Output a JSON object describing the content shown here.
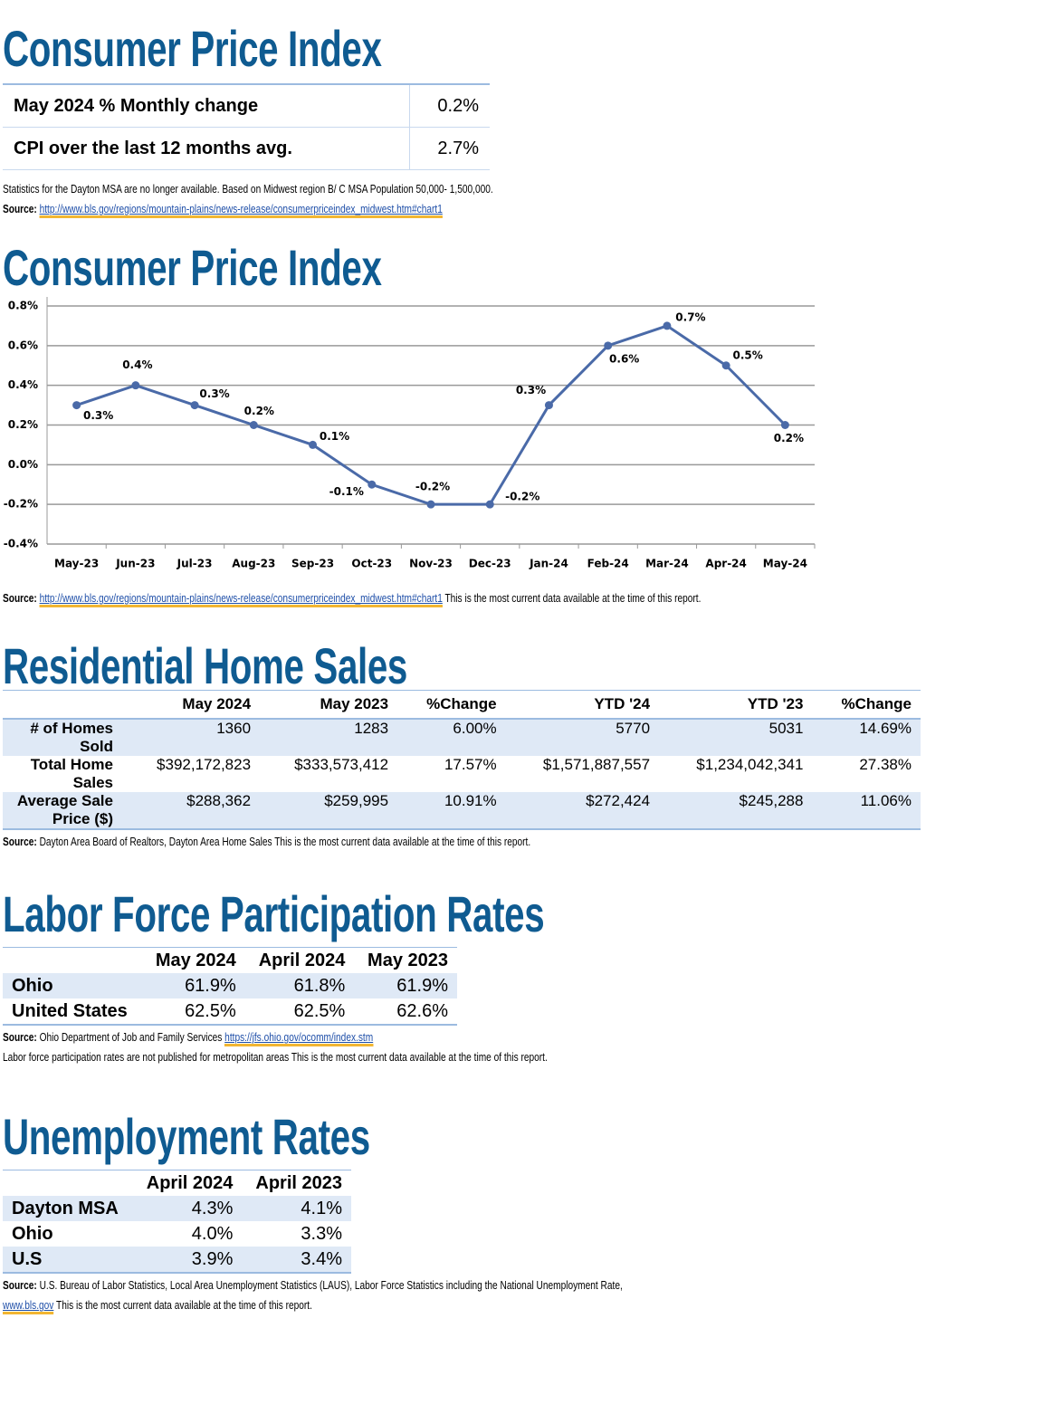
{
  "cpi_summary": {
    "title": "Consumer Price Index",
    "rows": [
      [
        "May 2024 % Monthly change",
        "0.2%"
      ],
      [
        "CPI over the last 12 months avg.",
        "2.7%"
      ]
    ],
    "note": "Statistics for the Dayton MSA are no longer available. Based on Midwest region B/ C MSA Population 50,000- 1,500,000.",
    "source_label": "Source:",
    "source_link": "http://www.bls.gov/regions/mountain-plains/news-release/consumerpriceindex_midwest.htm#chart1"
  },
  "chart_data": {
    "type": "line",
    "title": "Consumer Price Index",
    "categories": [
      "May-23",
      "Jun-23",
      "Jul-23",
      "Aug-23",
      "Sep-23",
      "Oct-23",
      "Nov-23",
      "Dec-23",
      "Jan-24",
      "Feb-24",
      "Mar-24",
      "Apr-24",
      "May-24"
    ],
    "series": [
      {
        "color": "#4a6aa8",
        "values": [
          0.3,
          0.4,
          0.3,
          0.2,
          0.1,
          -0.1,
          -0.2,
          -0.2,
          0.3,
          0.6,
          0.7,
          0.5,
          0.2
        ],
        "value_labels": [
          "0.3%",
          "0.4%",
          "0.3%",
          "0.2%",
          "0.1%",
          "-0.1%",
          "-0.2%",
          "-0.2%",
          "0.3%",
          "0.6%",
          "0.7%",
          "0.5%",
          "0.2%"
        ]
      }
    ],
    "ylim": [
      -0.4,
      0.8
    ],
    "yticks": [
      {
        "value": -0.4,
        "label": "-0.4%"
      },
      {
        "value": -0.2,
        "label": "-0.2%"
      },
      {
        "value": 0,
        "label": "0.0%"
      },
      {
        "value": 0.2,
        "label": "0.2%"
      },
      {
        "value": 0.4,
        "label": "0.4%"
      },
      {
        "value": 0.6,
        "label": "0.6%"
      },
      {
        "value": 0.8,
        "label": "0.8%"
      }
    ],
    "grid": true
  },
  "cpi_chart_source": {
    "label": "Source:",
    "link": "http://www.bls.gov/regions/mountain-plains/news-release/consumerpriceindex_midwest.htm#chart1",
    "text": "This is the most current data available at the time of this report."
  },
  "home_sales": {
    "title": "Residential Home Sales",
    "header": [
      "May 2024",
      "May 2023",
      "%Change",
      "YTD '24",
      "YTD '23",
      "%Change"
    ],
    "rows": [
      {
        "label": "# of Homes Sold",
        "cells": [
          "1360",
          "1283",
          "6.00%",
          "5770",
          "5031",
          "14.69%"
        ]
      },
      {
        "label": "Total Home Sales",
        "cells": [
          "$392,172,823",
          "$333,573,412",
          "17.57%",
          "$1,571,887,557",
          "$1,234,042,341",
          "27.38%"
        ]
      },
      {
        "label": "Average Sale Price ($)",
        "cells": [
          "$288,362",
          "$259,995",
          "10.91%",
          "$272,424",
          "$245,288",
          "11.06%"
        ]
      }
    ],
    "source_label": "Source:",
    "source_text": "Dayton Area Board of Realtors, Dayton Area Home Sales This is the most current data available at the time of this report."
  },
  "labor_force": {
    "title": "Labor Force Participation Rates",
    "header": [
      "May 2024",
      "April 2024",
      "May 2023"
    ],
    "rows": [
      {
        "label": "Ohio",
        "cells": [
          "61.9%",
          "61.8%",
          "61.9%"
        ]
      },
      {
        "label": "United States",
        "cells": [
          "62.5%",
          "62.5%",
          "62.6%"
        ]
      }
    ],
    "source_label": "Source:",
    "source_text": "Ohio Department of Job and Family Services",
    "source_link": "https://jfs.ohio.gov/ocomm/index.stm",
    "note": "Labor force participation rates are not published for metropolitan areas This is the most current data available at the time of this report."
  },
  "unemployment": {
    "title": "Unemployment Rates",
    "header": [
      "April 2024",
      "April 2023"
    ],
    "rows": [
      {
        "label": "Dayton MSA",
        "cells": [
          "4.3%",
          "4.1%"
        ]
      },
      {
        "label": "Ohio",
        "cells": [
          "4.0%",
          "3.3%"
        ]
      },
      {
        "label": "U.S",
        "cells": [
          "3.9%",
          "3.4%"
        ]
      }
    ],
    "source_label": "Source:",
    "source_text": "U.S. Bureau of Labor Statistics, Local Area Unemployment Statistics (LAUS), Labor Force Statistics including the National Unemployment Rate,",
    "source_link": "www.bls.gov",
    "source_tail": "This is the most current data available at the time of this report."
  }
}
